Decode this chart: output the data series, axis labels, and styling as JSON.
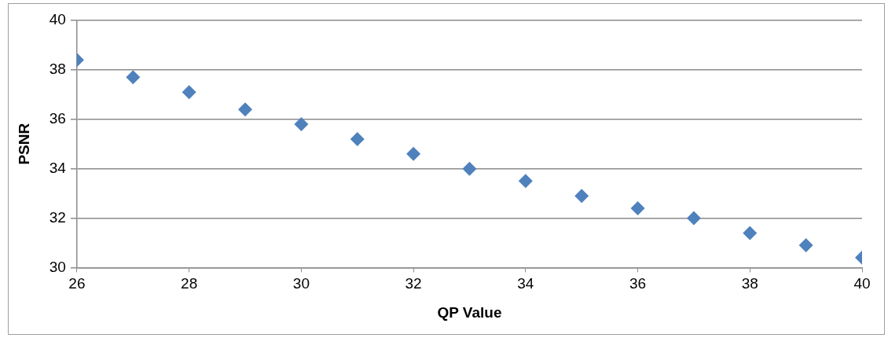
{
  "chart_data": {
    "type": "scatter",
    "xlabel": "QP Value",
    "ylabel": "PSNR",
    "x": [
      26,
      27,
      28,
      29,
      30,
      31,
      32,
      33,
      34,
      35,
      36,
      37,
      38,
      39,
      40
    ],
    "series": [
      {
        "color": "#4f81bd",
        "values": [
          38.4,
          37.7,
          37.1,
          36.4,
          35.8,
          35.2,
          34.6,
          34.0,
          33.5,
          32.9,
          32.4,
          32.0,
          31.4,
          30.9,
          30.4
        ]
      }
    ],
    "xlim": [
      26,
      40
    ],
    "xticks": [
      26,
      28,
      30,
      32,
      34,
      36,
      38,
      40
    ],
    "ylim": [
      30,
      40
    ],
    "yticks": [
      30,
      32,
      34,
      36,
      38,
      40
    ],
    "grid": "y",
    "marker": "diamond"
  }
}
